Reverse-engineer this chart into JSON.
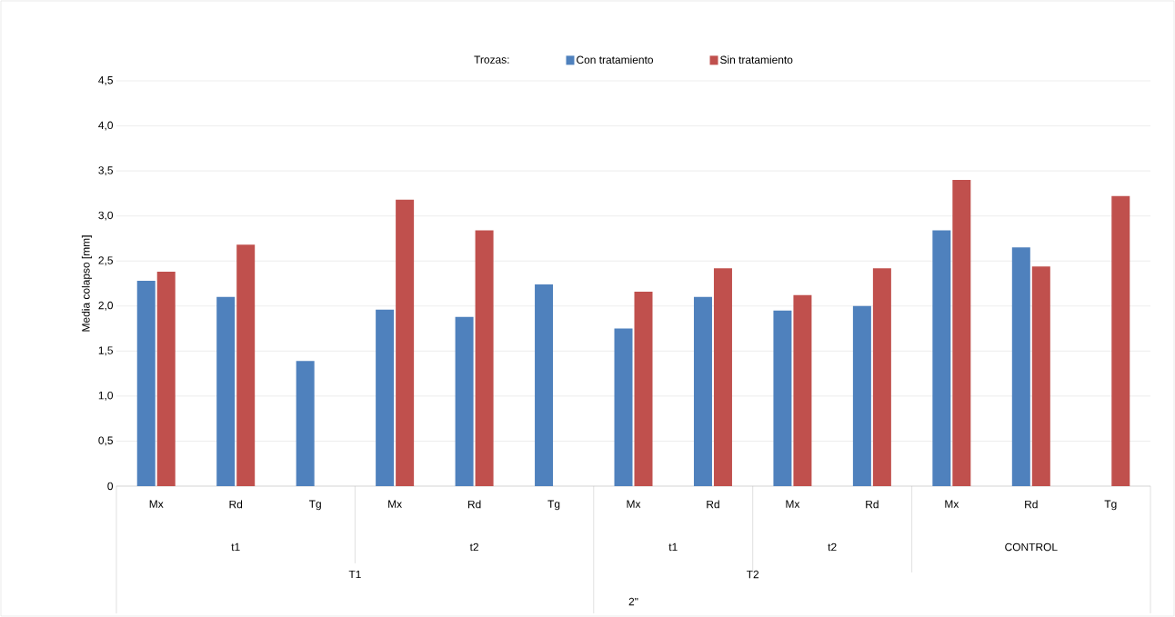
{
  "chart_data": {
    "type": "bar",
    "legend_title": "Trozas:",
    "ylabel": "Media colapso [mm]",
    "categories": [
      "Mx",
      "Rd",
      "Tg",
      "Mx",
      "Rd",
      "Tg",
      "Mx",
      "Rd",
      "Mx",
      "Rd",
      "Mx",
      "Rd",
      "Tg"
    ],
    "series": [
      {
        "name": "Con tratamiento",
        "color": "#4f81bd",
        "values": [
          2.28,
          2.1,
          1.39,
          1.96,
          1.88,
          2.24,
          1.75,
          2.1,
          1.95,
          2.0,
          2.84,
          2.65,
          null
        ]
      },
      {
        "name": "Sin tratamiento",
        "color": "#c0504d",
        "values": [
          2.38,
          2.68,
          null,
          3.18,
          2.84,
          null,
          2.16,
          2.42,
          2.12,
          2.42,
          3.4,
          2.44,
          3.22
        ]
      }
    ],
    "ylim": [
      0,
      4.5
    ],
    "yticks": [
      0,
      {
        "value": 0.5,
        "label": "0,5"
      },
      {
        "value": 1,
        "label": "1,0"
      },
      {
        "value": 1.5,
        "label": "1,5"
      },
      {
        "value": 2,
        "label": "2,0"
      },
      {
        "value": 2.5,
        "label": "2,5"
      },
      {
        "value": 3,
        "label": "3,0"
      },
      {
        "value": 3.5,
        "label": "3,5"
      },
      {
        "value": 4,
        "label": "4,0"
      },
      {
        "value": 4.5,
        "label": "4,5"
      }
    ],
    "grid": "y",
    "legend": "top",
    "annotations": [
      "t1",
      "t2",
      "t1",
      "t2",
      "CONTROL",
      "T1",
      "T2",
      "2\""
    ]
  }
}
